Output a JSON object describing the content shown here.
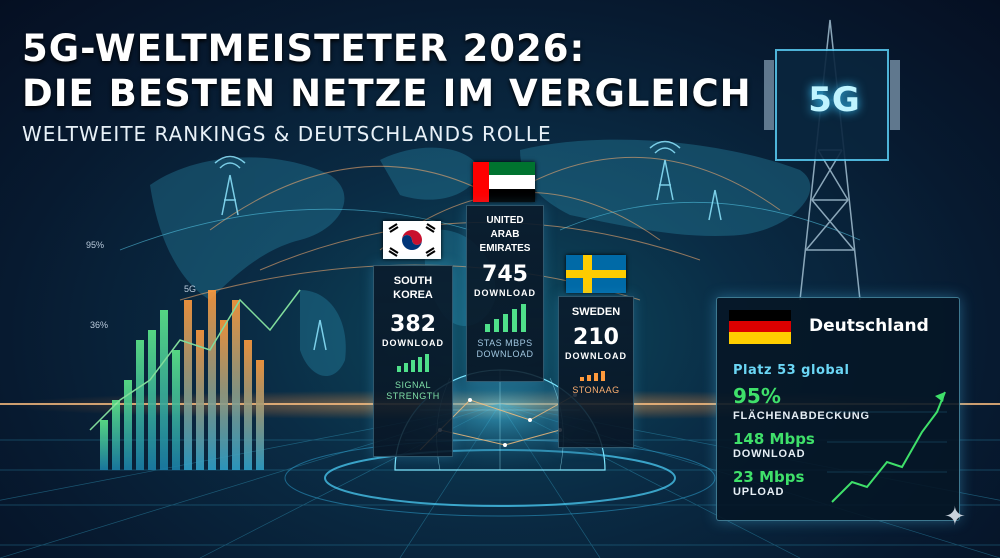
{
  "header": {
    "line1": "5G-Weltmeisteter 2026:",
    "line2": "Die besten Netze im Vergleich",
    "subtitle": "Weltweite Rankings & Deutschlands Rolle"
  },
  "tower": {
    "label": "5G"
  },
  "bg_labels": {
    "pct_top": "95%",
    "label_5g": "5G",
    "pct_mid": "36%"
  },
  "countries": [
    {
      "name": "South Korea",
      "value": "382",
      "unit": "Download",
      "foot": "Signal Strength"
    },
    {
      "name": "United Arab Emirates",
      "value": "745",
      "unit": "Download",
      "foot": "Stas Mbps Download"
    },
    {
      "name": "Sweden",
      "value": "210",
      "unit": "Download",
      "foot": "Stonaag"
    }
  ],
  "germany": {
    "title": "Deutschland",
    "rank": "Platz 53 global",
    "coverage_value": "95%",
    "coverage_label": "Flächenabdeckung",
    "download_value": "148 Mbps",
    "download_label": "Download",
    "upload_value": "23 Mbps",
    "upload_label": "Upload"
  },
  "colors": {
    "accent_cyan": "#6bd6f5",
    "accent_green": "#3fe06a",
    "accent_orange": "#ff9a3c"
  }
}
